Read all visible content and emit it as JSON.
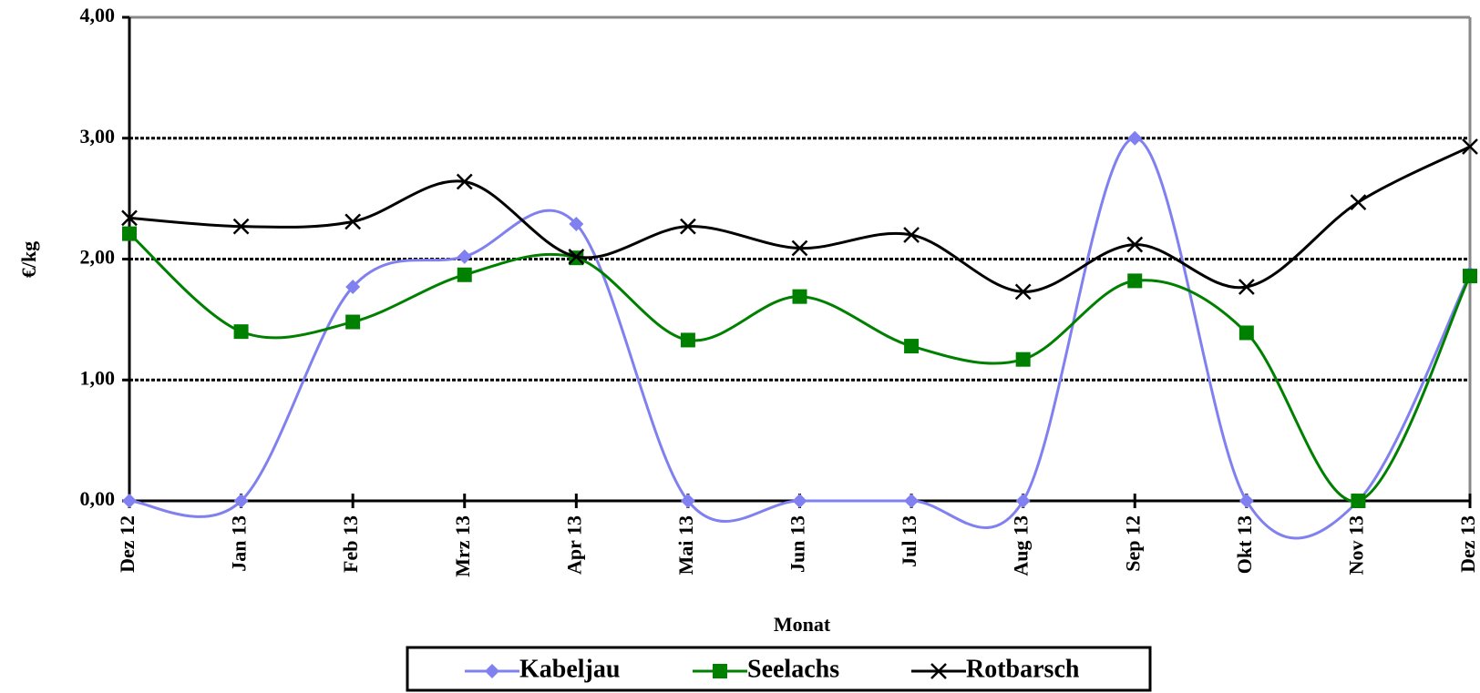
{
  "chart_data": {
    "type": "line",
    "x_label": "Monat",
    "y_label": "€/kg",
    "categories": [
      "Dez 12",
      "Jan 13",
      "Feb 13",
      "Mrz 13",
      "Apr 13",
      "Mai 13",
      "Jun 13",
      "Jul 13",
      "Aug 13",
      "Sep 12",
      "Okt 13",
      "Nov 13",
      "Dez 13"
    ],
    "series": [
      {
        "name": "Kabeljau",
        "color": "#8080f0",
        "marker": "diamond",
        "values": [
          0,
          0,
          1.77,
          2.02,
          2.29,
          0,
          0,
          0,
          0,
          3.0,
          0,
          0,
          1.88
        ]
      },
      {
        "name": "Seelachs",
        "color": "#008000",
        "marker": "square",
        "values": [
          2.21,
          1.4,
          1.48,
          1.87,
          2.01,
          1.33,
          1.69,
          1.28,
          1.17,
          1.82,
          1.39,
          0,
          1.86
        ]
      },
      {
        "name": "Rotbarsch",
        "color": "#000000",
        "marker": "x",
        "values": [
          2.34,
          2.27,
          2.31,
          2.64,
          2.02,
          2.27,
          2.09,
          2.2,
          1.73,
          2.12,
          1.77,
          2.47,
          2.93
        ]
      }
    ],
    "ylim": [
      0,
      4
    ],
    "yticks": [
      {
        "value": 0,
        "label": "0,00"
      },
      {
        "value": 1,
        "label": "1,00"
      },
      {
        "value": 2,
        "label": "2,00"
      },
      {
        "value": 3,
        "label": "3,00"
      },
      {
        "value": 4,
        "label": "4,00"
      }
    ],
    "grid": true,
    "smooth": true,
    "legend": "bottom"
  }
}
